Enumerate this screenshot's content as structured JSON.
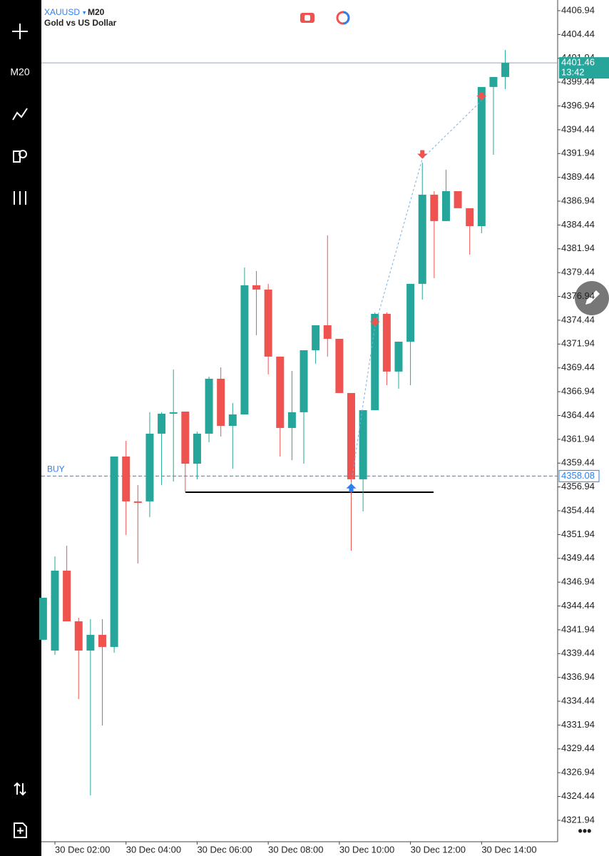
{
  "chart_data": {
    "type": "candlestick",
    "symbol": "XAUUSD",
    "timeframe": "M20",
    "subtitle": "Gold vs US Dollar",
    "up_color": "#26a69a",
    "down_color": "#ef5350",
    "categories": [
      null,
      "30 Dec 02:00",
      null,
      null,
      null,
      null,
      null,
      "30 Dec 04:00",
      null,
      null,
      null,
      null,
      null,
      "30 Dec 06:00",
      null,
      null,
      null,
      null,
      null,
      "30 Dec 08:00",
      null,
      null,
      null,
      null,
      null,
      "30 Dec 10:00",
      null,
      null,
      null,
      null,
      null,
      "30 Dec 12:00",
      null,
      null,
      null,
      null,
      null,
      "30 Dec 14:00",
      null,
      null
    ],
    "open": [
      4340.89,
      4339.76,
      4348.15,
      4342.83,
      4339.76,
      4341.41,
      4340.14,
      4360.13,
      4355.42,
      4355.42,
      4362.53,
      4364.63,
      4364.85,
      4359.38,
      4362.53,
      4368.3,
      4363.35,
      4364.55,
      4378.11,
      4377.66,
      4370.62,
      4363.13,
      4364.78,
      4371.29,
      4373.91,
      4372.49,
      4366.8,
      4357.74,
      4365.0,
      4375.11,
      4369.05,
      4372.19,
      4378.26,
      4387.62,
      4384.85,
      4387.99,
      4386.2,
      4384.32,
      4398.93,
      4399.98
    ],
    "high": [
      4345.31,
      4349.65,
      4350.77,
      4343.21,
      4343.06,
      4343.06,
      4360.13,
      4361.78,
      4357.14,
      4364.78,
      4364.78,
      4369.27,
      4364.85,
      4362.75,
      4368.52,
      4369.49,
      4365.75,
      4379.98,
      4379.61,
      4378.26,
      4370.62,
      4369.12,
      4371.29,
      4373.91,
      4383.35,
      4372.49,
      4366.8,
      4365.0,
      4375.26,
      4375.26,
      4372.19,
      4378.26,
      4390.99,
      4387.99,
      4390.24,
      4387.99,
      4386.2,
      4398.93,
      4399.98,
      4402.82
    ],
    "low": [
      4340.89,
      4339.31,
      4342.83,
      4334.67,
      4324.56,
      4331.9,
      4339.54,
      4351.9,
      4348.9,
      4353.77,
      4357.14,
      4357.51,
      4356.39,
      4357.74,
      4361.63,
      4362.23,
      4358.86,
      4364.55,
      4372.87,
      4368.75,
      4360.13,
      4359.76,
      4359.38,
      4369.87,
      4370.62,
      4366.8,
      4350.25,
      4354.37,
      4365.0,
      4367.62,
      4367.25,
      4367.62,
      4376.61,
      4378.86,
      4384.85,
      4386.2,
      4381.33,
      4383.57,
      4391.81,
      4398.7
    ],
    "close": [
      4345.31,
      4348.15,
      4342.83,
      4339.76,
      4341.41,
      4340.14,
      4360.13,
      4355.42,
      4355.27,
      4362.53,
      4364.63,
      4364.78,
      4359.38,
      4362.53,
      4368.3,
      4363.35,
      4364.55,
      4378.11,
      4377.66,
      4370.62,
      4363.13,
      4364.78,
      4371.29,
      4373.91,
      4372.49,
      4366.8,
      4357.74,
      4365.0,
      4375.11,
      4369.05,
      4372.19,
      4378.26,
      4387.62,
      4384.85,
      4387.99,
      4386.2,
      4384.32,
      4398.93,
      4399.98,
      4401.46
    ],
    "ylim": [
      4319.69,
      4408.06
    ],
    "yticks": [
      4406.94,
      4404.44,
      4401.94,
      4399.44,
      4396.94,
      4394.44,
      4391.94,
      4389.44,
      4386.94,
      4384.44,
      4381.94,
      4379.44,
      4376.94,
      4374.44,
      4371.94,
      4369.44,
      4366.94,
      4364.44,
      4361.94,
      4359.44,
      4356.94,
      4354.44,
      4351.94,
      4349.44,
      4346.94,
      4344.44,
      4341.94,
      4339.44,
      4336.94,
      4334.44,
      4331.94,
      4329.44,
      4326.94,
      4324.44,
      4321.94
    ],
    "current_price": 4401.46,
    "bar_timer": "13:42",
    "order": {
      "label": "BUY",
      "price": 4358.08,
      "color": "#2f80ed"
    },
    "level_line": 4356.39,
    "markers": [
      {
        "x": 26,
        "y": 4357.3,
        "color": "#2f80ed"
      },
      {
        "x": 28,
        "y": 4373.8,
        "color": "#ef5350"
      },
      {
        "x": 32,
        "y": 4391.4,
        "color": "#ef5350"
      },
      {
        "x": 37,
        "y": 4397.5,
        "color": "#ef5350"
      }
    ]
  }
}
